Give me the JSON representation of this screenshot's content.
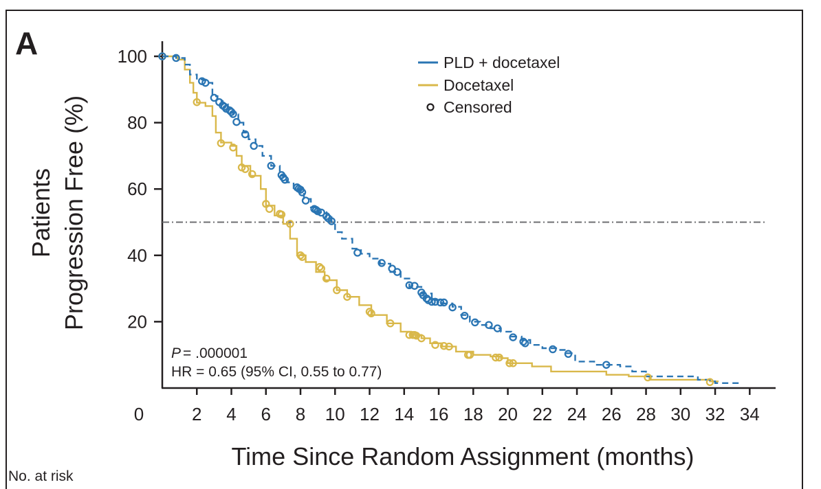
{
  "panel_label": "A",
  "risk_table_label": "No. at risk",
  "colors": {
    "pld": "#2a75b3",
    "doc": "#d9b84a",
    "ink": "#231f20",
    "median_line": "#6d6e71"
  },
  "chart_data": {
    "type": "line",
    "subtype": "kaplan-meier",
    "xlabel": "Time Since Random Assignment (months)",
    "ylabel_lines": [
      "Patients",
      "Progression Free (%)"
    ],
    "xlim": [
      0,
      35.5
    ],
    "ylim": [
      0,
      100
    ],
    "x_ticks": [
      2,
      4,
      6,
      8,
      10,
      12,
      14,
      16,
      18,
      20,
      22,
      24,
      26,
      28,
      30,
      32,
      34
    ],
    "x_zero_label": "0",
    "y_ticks": [
      20,
      40,
      60,
      80,
      100
    ],
    "reference_line_y": 50,
    "legend_position": "top-right",
    "legend": [
      {
        "label": "PLD + docetaxel",
        "marker": "line",
        "series": "pld"
      },
      {
        "label": "Docetaxel",
        "marker": "line",
        "series": "doc"
      },
      {
        "label": "Censored",
        "marker": "circle"
      }
    ],
    "annotations": {
      "p_label": "P",
      "p_value": "= .000001",
      "hr": "HR = 0.65 (95% CI, 0.55 to 0.77)"
    },
    "series": [
      {
        "id": "pld",
        "name": "PLD + docetaxel",
        "style": "dashed",
        "steps": [
          [
            0,
            100
          ],
          [
            0.8,
            99.5
          ],
          [
            1.3,
            97.5
          ],
          [
            1.6,
            94.5
          ],
          [
            2.0,
            93.0
          ],
          [
            2.5,
            92.0
          ],
          [
            2.9,
            88.0
          ],
          [
            3.2,
            86.5
          ],
          [
            3.5,
            85.5
          ],
          [
            3.8,
            84.0
          ],
          [
            4.1,
            82.5
          ],
          [
            4.4,
            80.0
          ],
          [
            4.7,
            77.0
          ],
          [
            5.0,
            75.0
          ],
          [
            5.4,
            73.0
          ],
          [
            5.8,
            70.0
          ],
          [
            6.3,
            67.0
          ],
          [
            6.8,
            64.0
          ],
          [
            7.2,
            62.0
          ],
          [
            7.6,
            60.0
          ],
          [
            8.2,
            57.0
          ],
          [
            8.6,
            54.5
          ],
          [
            9.0,
            53.0
          ],
          [
            9.5,
            51.5
          ],
          [
            9.8,
            50.0
          ],
          [
            10.0,
            47.0
          ],
          [
            10.4,
            45.0
          ],
          [
            11.0,
            42.0
          ],
          [
            11.5,
            40.5
          ],
          [
            12.0,
            39.0
          ],
          [
            12.6,
            37.5
          ],
          [
            13.2,
            35.0
          ],
          [
            13.8,
            33.0
          ],
          [
            14.3,
            30.5
          ],
          [
            15.0,
            28.5
          ],
          [
            15.6,
            26.5
          ],
          [
            16.2,
            25.5
          ],
          [
            16.8,
            24.5
          ],
          [
            17.3,
            22.0
          ],
          [
            17.8,
            20.0
          ],
          [
            18.4,
            19.0
          ],
          [
            19.0,
            18.0
          ],
          [
            19.6,
            17.0
          ],
          [
            20.2,
            15.5
          ],
          [
            20.8,
            14.5
          ],
          [
            21.3,
            13.0
          ],
          [
            22.0,
            12.0
          ],
          [
            22.8,
            11.5
          ],
          [
            23.4,
            10.5
          ],
          [
            23.9,
            8.0
          ],
          [
            25.0,
            7.0
          ],
          [
            26.5,
            6.5
          ],
          [
            27.2,
            5.0
          ],
          [
            28.0,
            3.5
          ],
          [
            30.0,
            3.5
          ],
          [
            31.0,
            2.5
          ],
          [
            31.7,
            2.0
          ],
          [
            32.0,
            1.5
          ],
          [
            33.4,
            1.5
          ]
        ],
        "censored": [
          [
            0.0,
            100.0
          ],
          [
            0.8,
            99.5
          ],
          [
            2.3,
            92.5
          ],
          [
            2.5,
            92.0
          ],
          [
            3.0,
            87.5
          ],
          [
            3.3,
            86.2
          ],
          [
            3.5,
            85.2
          ],
          [
            3.6,
            84.8
          ],
          [
            3.7,
            84.2
          ],
          [
            3.9,
            83.7
          ],
          [
            4.0,
            83.2
          ],
          [
            4.1,
            82.6
          ],
          [
            4.3,
            80.2
          ],
          [
            4.8,
            76.5
          ],
          [
            5.3,
            73.0
          ],
          [
            6.3,
            67.0
          ],
          [
            6.9,
            64.2
          ],
          [
            7.0,
            63.5
          ],
          [
            7.1,
            62.8
          ],
          [
            7.8,
            60.5
          ],
          [
            7.9,
            60.1
          ],
          [
            8.0,
            59.8
          ],
          [
            8.1,
            59.0
          ],
          [
            8.3,
            56.5
          ],
          [
            8.8,
            54.0
          ],
          [
            8.9,
            53.7
          ],
          [
            9.0,
            53.3
          ],
          [
            9.2,
            52.9
          ],
          [
            9.5,
            51.8
          ],
          [
            9.6,
            51.2
          ],
          [
            9.8,
            50.3
          ],
          [
            11.3,
            40.8
          ],
          [
            12.7,
            37.7
          ],
          [
            13.3,
            36.0
          ],
          [
            13.6,
            35.0
          ],
          [
            14.3,
            31.0
          ],
          [
            14.6,
            30.8
          ],
          [
            15.0,
            28.8
          ],
          [
            15.1,
            28.0
          ],
          [
            15.3,
            27.0
          ],
          [
            15.4,
            26.5
          ],
          [
            15.6,
            26.0
          ],
          [
            15.8,
            26.0
          ],
          [
            16.1,
            25.8
          ],
          [
            16.3,
            25.8
          ],
          [
            16.8,
            24.3
          ],
          [
            17.5,
            21.8
          ],
          [
            18.1,
            19.8
          ],
          [
            18.9,
            19.0
          ],
          [
            19.4,
            18.0
          ],
          [
            20.3,
            15.3
          ],
          [
            20.9,
            14.0
          ],
          [
            21.0,
            13.5
          ],
          [
            22.6,
            11.7
          ],
          [
            23.5,
            10.3
          ],
          [
            25.7,
            7.0
          ]
        ]
      },
      {
        "id": "doc",
        "name": "Docetaxel",
        "style": "solid",
        "steps": [
          [
            0,
            100
          ],
          [
            0.9,
            99.0
          ],
          [
            1.3,
            96.0
          ],
          [
            1.6,
            92.0
          ],
          [
            1.8,
            89.0
          ],
          [
            2.0,
            86.0
          ],
          [
            2.5,
            85.0
          ],
          [
            2.9,
            82.0
          ],
          [
            3.1,
            77.0
          ],
          [
            3.4,
            74.0
          ],
          [
            4.0,
            73.0
          ],
          [
            4.3,
            70.0
          ],
          [
            4.6,
            67.0
          ],
          [
            5.1,
            64.0
          ],
          [
            5.7,
            60.0
          ],
          [
            6.0,
            55.0
          ],
          [
            6.5,
            52.0
          ],
          [
            7.0,
            49.5
          ],
          [
            7.4,
            45.0
          ],
          [
            7.8,
            40.0
          ],
          [
            8.3,
            38.0
          ],
          [
            8.9,
            35.0
          ],
          [
            9.4,
            32.5
          ],
          [
            10.1,
            29.5
          ],
          [
            10.7,
            27.5
          ],
          [
            11.4,
            25.0
          ],
          [
            12.1,
            22.0
          ],
          [
            13.0,
            19.5
          ],
          [
            13.8,
            17.0
          ],
          [
            14.4,
            16.0
          ],
          [
            15.0,
            15.0
          ],
          [
            15.5,
            13.5
          ],
          [
            16.2,
            12.5
          ],
          [
            17.0,
            11.0
          ],
          [
            18.0,
            10.0
          ],
          [
            19.0,
            9.5
          ],
          [
            19.6,
            9.0
          ],
          [
            20.0,
            7.5
          ],
          [
            21.4,
            6.5
          ],
          [
            22.5,
            5.0
          ],
          [
            25.7,
            4.0
          ],
          [
            27.0,
            3.5
          ],
          [
            28.2,
            2.5
          ],
          [
            31.7,
            2.0
          ],
          [
            32.2,
            2.0
          ]
        ],
        "censored": [
          [
            0.0,
            100.0
          ],
          [
            2.0,
            86.2
          ],
          [
            3.4,
            73.8
          ],
          [
            4.1,
            72.5
          ],
          [
            4.6,
            66.5
          ],
          [
            4.8,
            66.0
          ],
          [
            5.2,
            64.5
          ],
          [
            6.0,
            55.5
          ],
          [
            6.2,
            54.0
          ],
          [
            6.8,
            52.5
          ],
          [
            6.9,
            52.3
          ],
          [
            7.4,
            49.5
          ],
          [
            8.0,
            40.0
          ],
          [
            8.1,
            39.5
          ],
          [
            9.1,
            36.5
          ],
          [
            9.2,
            36.0
          ],
          [
            9.5,
            33.0
          ],
          [
            10.1,
            29.5
          ],
          [
            10.7,
            27.5
          ],
          [
            12.0,
            23.0
          ],
          [
            12.1,
            22.5
          ],
          [
            13.2,
            19.5
          ],
          [
            14.3,
            16.0
          ],
          [
            14.5,
            16.0
          ],
          [
            14.6,
            16.0
          ],
          [
            14.7,
            15.8
          ],
          [
            15.0,
            15.0
          ],
          [
            15.8,
            13.0
          ],
          [
            16.3,
            12.7
          ],
          [
            16.6,
            12.5
          ],
          [
            17.7,
            10.0
          ],
          [
            17.8,
            10.0
          ],
          [
            19.3,
            9.2
          ],
          [
            19.5,
            9.2
          ],
          [
            20.1,
            7.5
          ],
          [
            20.3,
            7.5
          ],
          [
            28.1,
            3.2
          ],
          [
            31.7,
            1.8
          ]
        ]
      }
    ]
  }
}
